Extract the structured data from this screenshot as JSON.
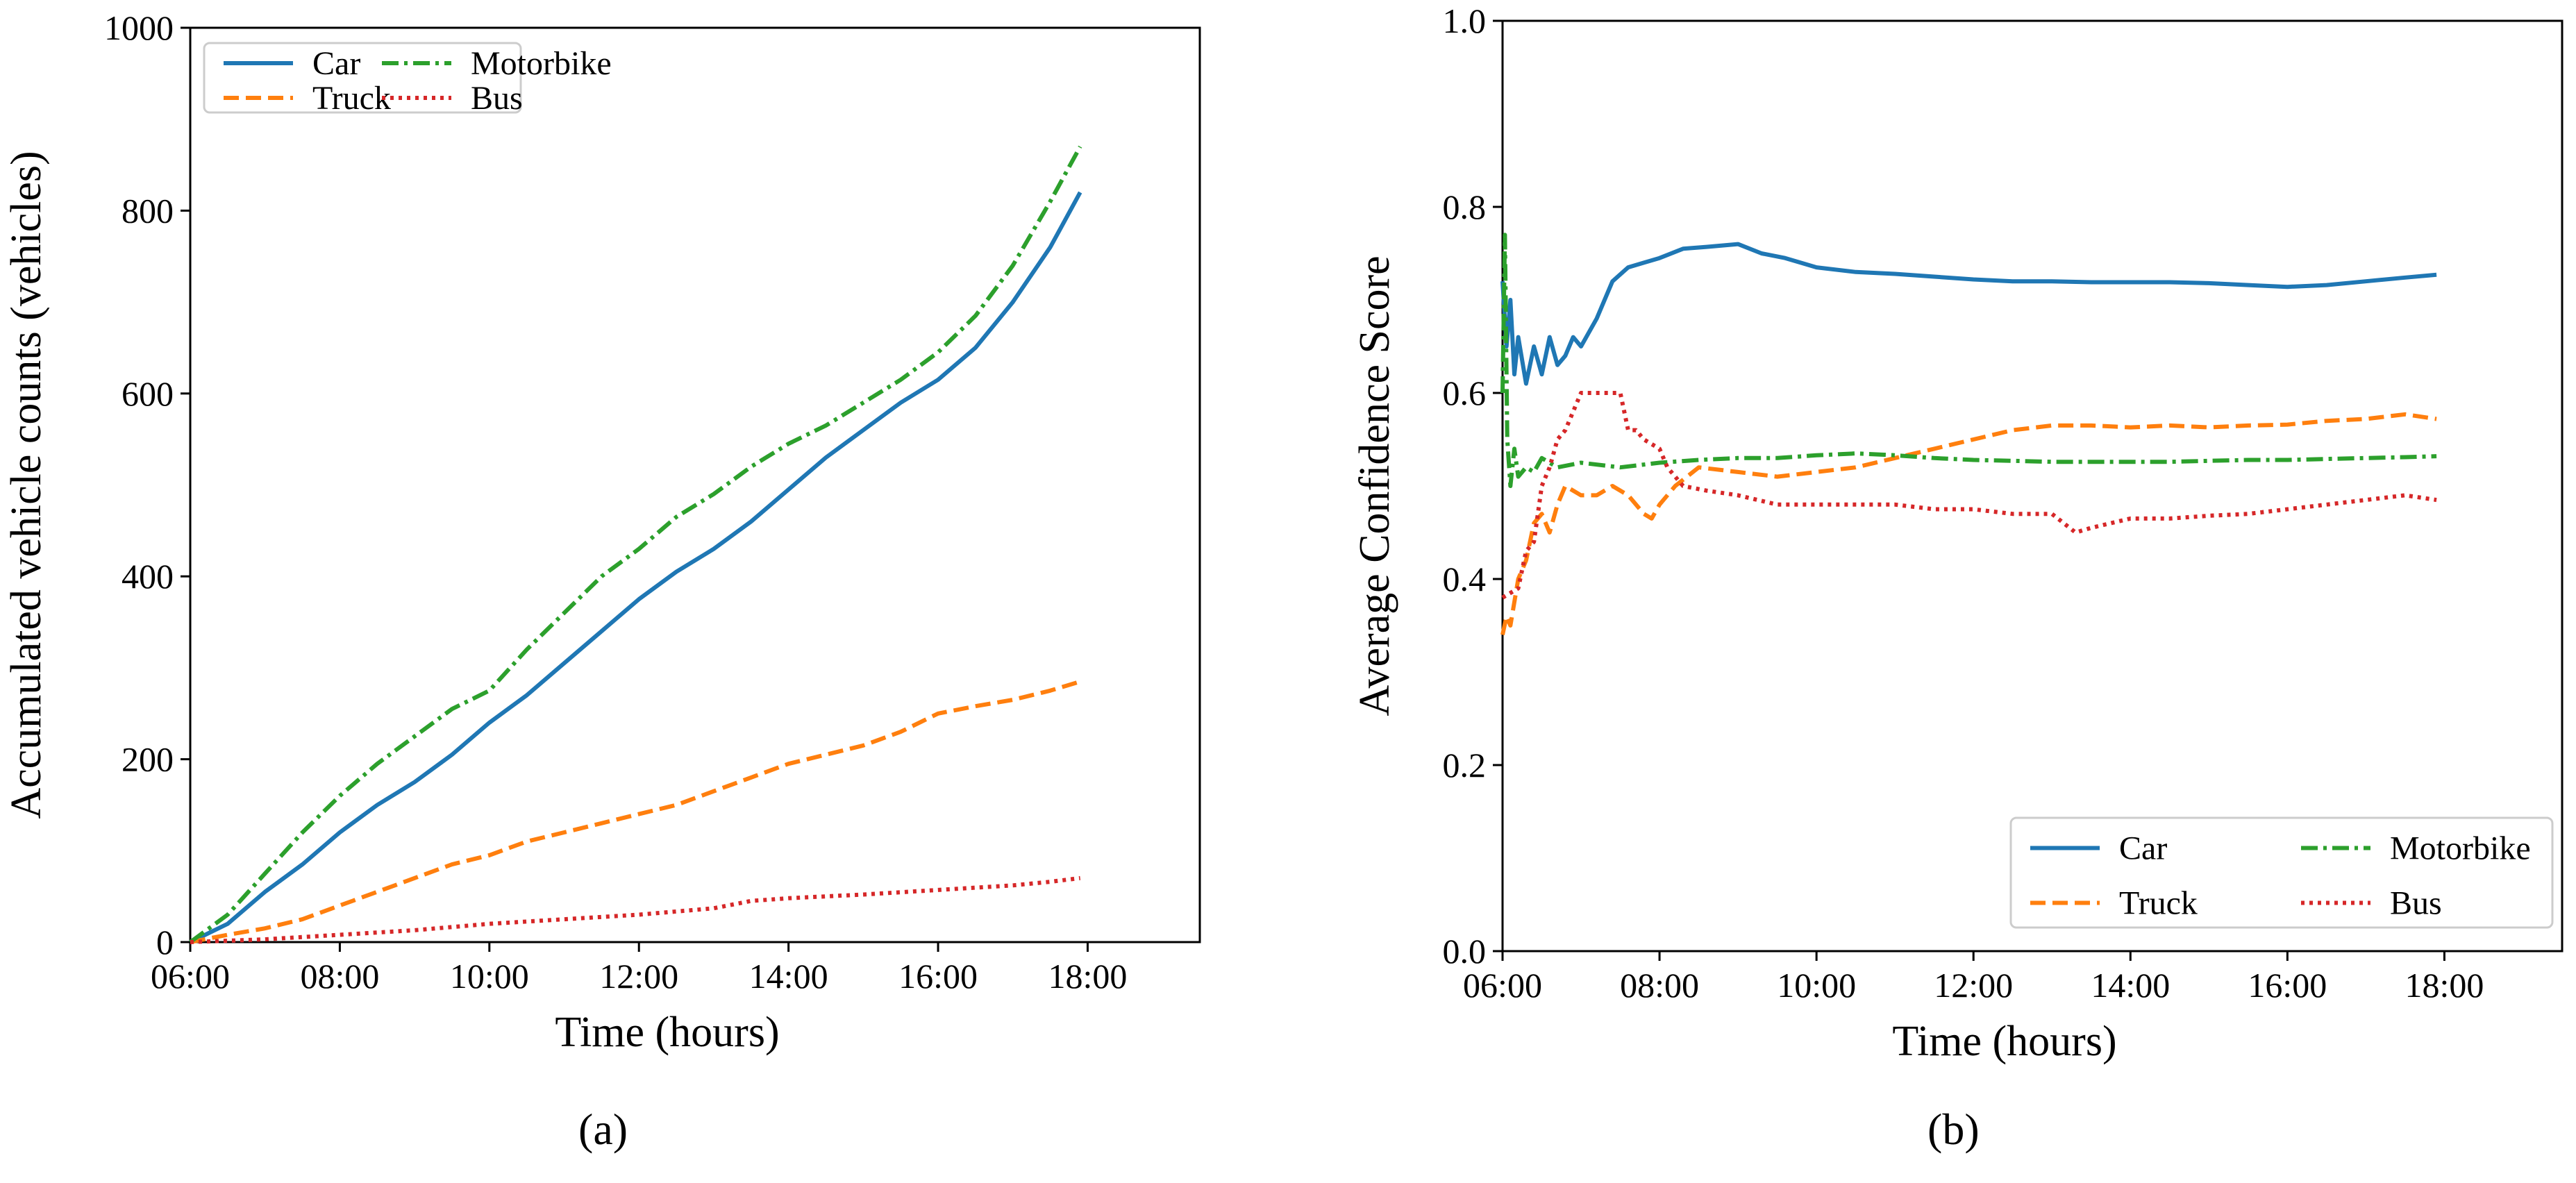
{
  "figure": {
    "panel_labels": [
      "(a)",
      "(b)"
    ]
  },
  "chart_data": [
    {
      "type": "line",
      "panel": "(a)",
      "title": "",
      "xlabel": "Time (hours)",
      "ylabel": "Accumulated vehicle counts (vehicles)",
      "xlim": [
        6,
        19.5
      ],
      "ylim": [
        0,
        1000
      ],
      "x_ticks": [
        6,
        8,
        10,
        12,
        14,
        16,
        18
      ],
      "x_tick_labels": [
        "06:00",
        "08:00",
        "10:00",
        "12:00",
        "14:00",
        "16:00",
        "18:00"
      ],
      "y_ticks": [
        0,
        200,
        400,
        600,
        800,
        1000
      ],
      "y_tick_labels": [
        "0",
        "200",
        "400",
        "600",
        "800",
        "1000"
      ],
      "grid": false,
      "legend": {
        "placement": "top-left",
        "columns": 2,
        "order": [
          "Car",
          "Truck",
          "Motorbike",
          "Bus"
        ]
      },
      "series": [
        {
          "name": "Car",
          "color": "#1f77b4",
          "style": "solid",
          "x": [
            6.0,
            6.5,
            7.0,
            7.5,
            8.0,
            8.5,
            9.0,
            9.5,
            10.0,
            10.5,
            11.0,
            11.5,
            12.0,
            12.5,
            13.0,
            13.5,
            14.0,
            14.5,
            15.0,
            15.5,
            16.0,
            16.5,
            17.0,
            17.5,
            17.9
          ],
          "y": [
            0,
            20,
            55,
            85,
            120,
            150,
            175,
            205,
            240,
            270,
            305,
            340,
            375,
            405,
            430,
            460,
            495,
            530,
            560,
            590,
            615,
            650,
            700,
            760,
            820
          ]
        },
        {
          "name": "Truck",
          "color": "#ff7f0e",
          "style": "dashed",
          "x": [
            6.0,
            6.5,
            7.0,
            7.5,
            8.0,
            8.5,
            9.0,
            9.5,
            10.0,
            10.5,
            11.0,
            11.5,
            12.0,
            12.5,
            13.0,
            13.5,
            14.0,
            14.5,
            15.0,
            15.5,
            16.0,
            16.5,
            17.0,
            17.5,
            17.9
          ],
          "y": [
            0,
            8,
            15,
            25,
            40,
            55,
            70,
            85,
            95,
            110,
            120,
            130,
            140,
            150,
            165,
            180,
            195,
            205,
            215,
            230,
            250,
            258,
            265,
            275,
            285
          ]
        },
        {
          "name": "Motorbike",
          "color": "#2ca02c",
          "style": "dashdot",
          "x": [
            6.0,
            6.5,
            7.0,
            7.5,
            8.0,
            8.5,
            9.0,
            9.5,
            10.0,
            10.5,
            11.0,
            11.5,
            12.0,
            12.5,
            13.0,
            13.5,
            14.0,
            14.5,
            15.0,
            15.5,
            16.0,
            16.5,
            17.0,
            17.5,
            17.9
          ],
          "y": [
            0,
            30,
            75,
            120,
            160,
            195,
            225,
            255,
            275,
            320,
            360,
            400,
            430,
            465,
            490,
            520,
            545,
            565,
            590,
            615,
            645,
            685,
            740,
            810,
            870
          ]
        },
        {
          "name": "Bus",
          "color": "#d62728",
          "style": "dotted",
          "x": [
            6.0,
            7.0,
            8.0,
            9.0,
            10.0,
            11.0,
            12.0,
            13.0,
            13.5,
            14.0,
            15.0,
            16.0,
            17.0,
            17.5,
            17.9
          ],
          "y": [
            0,
            3,
            8,
            13,
            20,
            25,
            30,
            37,
            45,
            48,
            52,
            57,
            62,
            66,
            70
          ]
        }
      ]
    },
    {
      "type": "line",
      "panel": "(b)",
      "title": "",
      "xlabel": "Time (hours)",
      "ylabel": "Average Confidence Score",
      "xlim": [
        6,
        19.5
      ],
      "ylim": [
        0,
        1
      ],
      "x_ticks": [
        6,
        8,
        10,
        12,
        14,
        16,
        18
      ],
      "x_tick_labels": [
        "06:00",
        "08:00",
        "10:00",
        "12:00",
        "14:00",
        "16:00",
        "18:00"
      ],
      "y_ticks": [
        0,
        0.2,
        0.4,
        0.6,
        0.8,
        1.0
      ],
      "y_tick_labels": [
        "0.0",
        "0.2",
        "0.4",
        "0.6",
        "0.8",
        "1.0"
      ],
      "grid": false,
      "legend": {
        "placement": "bottom-right",
        "columns": 2,
        "order": [
          "Car",
          "Truck",
          "Motorbike",
          "Bus"
        ]
      },
      "series": [
        {
          "name": "Car",
          "color": "#1f77b4",
          "style": "solid",
          "x": [
            6.0,
            6.05,
            6.1,
            6.15,
            6.2,
            6.3,
            6.4,
            6.5,
            6.6,
            6.7,
            6.8,
            6.9,
            7.0,
            7.2,
            7.4,
            7.6,
            7.8,
            8.0,
            8.3,
            8.6,
            9.0,
            9.3,
            9.6,
            10.0,
            10.5,
            11.0,
            11.5,
            12.0,
            12.5,
            13.0,
            13.5,
            14.0,
            14.5,
            15.0,
            15.5,
            16.0,
            16.5,
            17.0,
            17.5,
            17.9
          ],
          "y": [
            0.72,
            0.65,
            0.7,
            0.62,
            0.66,
            0.61,
            0.65,
            0.62,
            0.66,
            0.63,
            0.64,
            0.66,
            0.65,
            0.68,
            0.72,
            0.735,
            0.74,
            0.745,
            0.755,
            0.757,
            0.76,
            0.75,
            0.745,
            0.735,
            0.73,
            0.728,
            0.725,
            0.722,
            0.72,
            0.72,
            0.719,
            0.719,
            0.719,
            0.718,
            0.716,
            0.714,
            0.716,
            0.72,
            0.724,
            0.727
          ]
        },
        {
          "name": "Truck",
          "color": "#ff7f0e",
          "style": "dashed",
          "x": [
            6.0,
            6.05,
            6.1,
            6.2,
            6.3,
            6.4,
            6.5,
            6.6,
            6.7,
            6.8,
            7.0,
            7.2,
            7.4,
            7.6,
            7.8,
            7.9,
            8.0,
            8.2,
            8.5,
            9.0,
            9.5,
            10.0,
            10.5,
            11.0,
            11.5,
            12.0,
            12.5,
            13.0,
            13.5,
            14.0,
            14.5,
            15.0,
            15.5,
            16.0,
            16.5,
            17.0,
            17.5,
            17.9
          ],
          "y": [
            0.34,
            0.36,
            0.35,
            0.4,
            0.42,
            0.46,
            0.47,
            0.45,
            0.48,
            0.5,
            0.49,
            0.49,
            0.5,
            0.49,
            0.47,
            0.465,
            0.48,
            0.5,
            0.52,
            0.515,
            0.51,
            0.515,
            0.52,
            0.53,
            0.54,
            0.55,
            0.56,
            0.565,
            0.565,
            0.563,
            0.565,
            0.563,
            0.565,
            0.566,
            0.57,
            0.572,
            0.577,
            0.572
          ]
        },
        {
          "name": "Motorbike",
          "color": "#2ca02c",
          "style": "dashdot",
          "x": [
            6.0,
            6.03,
            6.06,
            6.1,
            6.15,
            6.2,
            6.3,
            6.4,
            6.5,
            6.7,
            7.0,
            7.5,
            8.0,
            8.5,
            9.0,
            9.5,
            10.0,
            10.5,
            11.0,
            11.5,
            12.0,
            12.5,
            13.0,
            13.5,
            14.0,
            14.5,
            15.0,
            15.5,
            16.0,
            16.5,
            17.0,
            17.5,
            17.9
          ],
          "y": [
            0.6,
            0.77,
            0.55,
            0.5,
            0.54,
            0.51,
            0.52,
            0.515,
            0.53,
            0.52,
            0.525,
            0.52,
            0.525,
            0.528,
            0.53,
            0.53,
            0.533,
            0.535,
            0.533,
            0.53,
            0.528,
            0.527,
            0.526,
            0.526,
            0.526,
            0.526,
            0.527,
            0.528,
            0.528,
            0.529,
            0.53,
            0.531,
            0.532
          ]
        },
        {
          "name": "Bus",
          "color": "#d62728",
          "style": "dotted",
          "x": [
            6.0,
            6.2,
            6.3,
            6.4,
            6.5,
            6.6,
            6.7,
            6.8,
            6.9,
            7.0,
            7.5,
            7.6,
            7.7,
            7.8,
            8.0,
            8.1,
            8.3,
            8.6,
            9.0,
            9.5,
            10.0,
            10.5,
            11.0,
            11.5,
            12.0,
            12.5,
            13.0,
            13.3,
            13.5,
            14.0,
            14.5,
            15.0,
            15.5,
            16.0,
            16.5,
            17.0,
            17.5,
            17.9
          ],
          "y": [
            0.38,
            0.39,
            0.43,
            0.44,
            0.5,
            0.52,
            0.55,
            0.56,
            0.58,
            0.6,
            0.6,
            0.56,
            0.56,
            0.55,
            0.54,
            0.52,
            0.5,
            0.495,
            0.49,
            0.48,
            0.48,
            0.48,
            0.48,
            0.475,
            0.475,
            0.47,
            0.47,
            0.45,
            0.455,
            0.465,
            0.465,
            0.468,
            0.47,
            0.475,
            0.48,
            0.485,
            0.49,
            0.485
          ]
        }
      ]
    }
  ]
}
